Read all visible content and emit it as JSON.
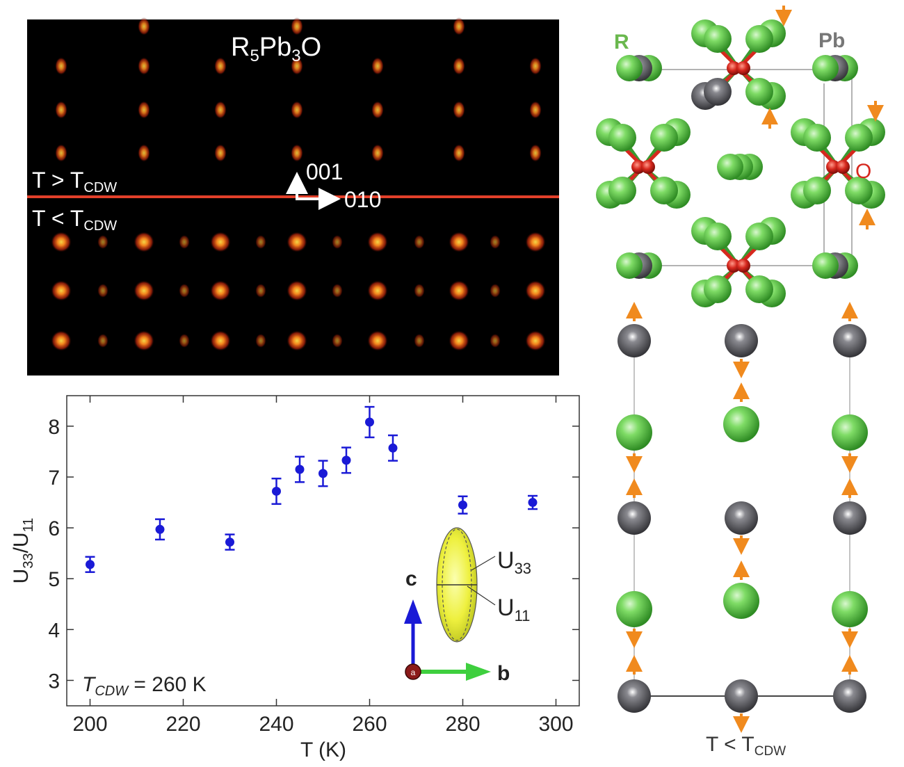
{
  "diffraction": {
    "title_main": "R",
    "title_sub1": "5",
    "title_mid": "Pb",
    "title_sub2": "3",
    "title_end": "O",
    "above_prefix": "T > T",
    "above_sub": "CDW",
    "below_prefix": "T < T",
    "below_sub": "CDW",
    "axis_up": "001",
    "axis_right": "010",
    "colors": {
      "background": "#000000",
      "divider": "#e2402a",
      "spot": "#ff5a1a",
      "spot_core": "#ffd23a"
    }
  },
  "structure_top": {
    "label_r": "R",
    "label_pb": "Pb",
    "label_o": "O",
    "colors": {
      "r_atom": "#5fc84a",
      "pb_atom": "#4a4a4e",
      "o_atom": "#d6281e",
      "arrow": "#f08a1e",
      "label_r": "#6ab84e",
      "label_pb": "#777777",
      "label_o": "#d6281e"
    }
  },
  "structure_bottom": {
    "caption_prefix": "T < T",
    "caption_sub": "CDW"
  },
  "chart_data": {
    "type": "scatter",
    "title": "",
    "xlabel": "T (K)",
    "ylabel_main": "U",
    "ylabel_sub1": "33",
    "ylabel_slash": "/U",
    "ylabel_sub2": "11",
    "xlim": [
      195,
      305
    ],
    "ylim": [
      2.5,
      8.6
    ],
    "xticks": [
      200,
      220,
      240,
      260,
      280,
      300
    ],
    "yticks": [
      3,
      4,
      5,
      6,
      7,
      8
    ],
    "grid": false,
    "marker_color": "#1a1ad6",
    "series": [
      {
        "x": [
          200,
          215,
          230,
          240,
          245,
          250,
          255,
          260,
          265,
          280,
          295
        ],
        "y": [
          5.28,
          5.97,
          5.72,
          6.72,
          7.15,
          7.07,
          7.33,
          8.08,
          7.57,
          6.45,
          6.5
        ],
        "yerr": [
          0.15,
          0.2,
          0.15,
          0.25,
          0.25,
          0.25,
          0.25,
          0.3,
          0.25,
          0.17,
          0.13
        ]
      }
    ],
    "annotation_tcdw_main": "T",
    "annotation_tcdw_sub": "CDW",
    "annotation_tcdw_value": " = 260 K",
    "inset": {
      "axis_c": "c",
      "axis_b": "b",
      "axis_a": "a",
      "u33_main": "U",
      "u33_sub": "33",
      "u11_main": "U",
      "u11_sub": "11",
      "colors": {
        "ellipsoid": "#f2f24a",
        "c_arrow": "#1a1ad6",
        "b_arrow": "#3ecf3e",
        "a_dot": "#8b1a1a"
      }
    }
  }
}
